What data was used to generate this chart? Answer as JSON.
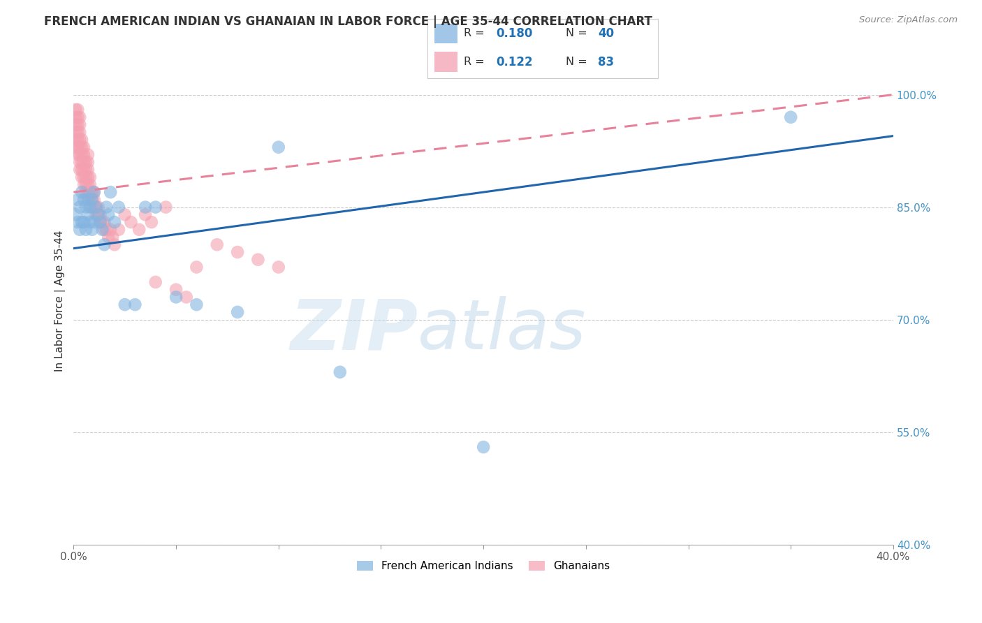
{
  "title": "FRENCH AMERICAN INDIAN VS GHANAIAN IN LABOR FORCE | AGE 35-44 CORRELATION CHART",
  "source": "Source: ZipAtlas.com",
  "ylabel": "In Labor Force | Age 35-44",
  "xlim": [
    0.0,
    0.4
  ],
  "ylim": [
    0.4,
    1.05
  ],
  "x_ticks": [
    0.0,
    0.05,
    0.1,
    0.15,
    0.2,
    0.25,
    0.3,
    0.35,
    0.4
  ],
  "x_tick_labels": [
    "0.0%",
    "",
    "",
    "",
    "",
    "",
    "",
    "",
    "40.0%"
  ],
  "y_ticks": [
    0.4,
    0.55,
    0.7,
    0.85,
    1.0
  ],
  "y_tick_labels": [
    "40.0%",
    "55.0%",
    "70.0%",
    "85.0%",
    "100.0%"
  ],
  "grid_color": "#cccccc",
  "background_color": "#ffffff",
  "watermark_zip": "ZIP",
  "watermark_atlas": "atlas",
  "legend_R_blue": "0.180",
  "legend_N_blue": "40",
  "legend_R_pink": "0.122",
  "legend_N_pink": "83",
  "blue_color": "#82b4e0",
  "pink_color": "#f4a0b0",
  "blue_line_color": "#2166ac",
  "pink_line_color": "#e8829a",
  "title_color": "#333333",
  "source_color": "#888888",
  "axis_label_color": "#333333",
  "tick_color_y": "#4393c3",
  "tick_color_x": "#555555",
  "blue_scatter_x": [
    0.001,
    0.002,
    0.002,
    0.003,
    0.003,
    0.004,
    0.004,
    0.005,
    0.005,
    0.006,
    0.006,
    0.007,
    0.007,
    0.008,
    0.008,
    0.009,
    0.009,
    0.01,
    0.01,
    0.011,
    0.012,
    0.013,
    0.014,
    0.015,
    0.016,
    0.017,
    0.018,
    0.02,
    0.022,
    0.025,
    0.03,
    0.035,
    0.04,
    0.05,
    0.06,
    0.08,
    0.1,
    0.13,
    0.2,
    0.35
  ],
  "blue_scatter_y": [
    0.84,
    0.86,
    0.83,
    0.85,
    0.82,
    0.87,
    0.83,
    0.86,
    0.83,
    0.85,
    0.82,
    0.86,
    0.84,
    0.85,
    0.83,
    0.86,
    0.82,
    0.87,
    0.83,
    0.85,
    0.84,
    0.83,
    0.82,
    0.8,
    0.85,
    0.84,
    0.87,
    0.83,
    0.85,
    0.72,
    0.72,
    0.85,
    0.85,
    0.73,
    0.72,
    0.71,
    0.93,
    0.63,
    0.53,
    0.97
  ],
  "pink_scatter_x": [
    0.001,
    0.001,
    0.001,
    0.001,
    0.001,
    0.001,
    0.002,
    0.002,
    0.002,
    0.002,
    0.002,
    0.002,
    0.002,
    0.003,
    0.003,
    0.003,
    0.003,
    0.003,
    0.003,
    0.003,
    0.003,
    0.004,
    0.004,
    0.004,
    0.004,
    0.004,
    0.004,
    0.005,
    0.005,
    0.005,
    0.005,
    0.005,
    0.005,
    0.006,
    0.006,
    0.006,
    0.006,
    0.006,
    0.007,
    0.007,
    0.007,
    0.007,
    0.007,
    0.007,
    0.008,
    0.008,
    0.008,
    0.008,
    0.009,
    0.009,
    0.009,
    0.01,
    0.01,
    0.01,
    0.011,
    0.011,
    0.012,
    0.012,
    0.013,
    0.013,
    0.014,
    0.015,
    0.015,
    0.016,
    0.017,
    0.018,
    0.019,
    0.02,
    0.022,
    0.025,
    0.028,
    0.032,
    0.035,
    0.038,
    0.04,
    0.045,
    0.05,
    0.055,
    0.06,
    0.07,
    0.08,
    0.09,
    0.1
  ],
  "pink_scatter_y": [
    0.93,
    0.94,
    0.95,
    0.96,
    0.97,
    0.98,
    0.92,
    0.93,
    0.94,
    0.95,
    0.96,
    0.97,
    0.98,
    0.9,
    0.91,
    0.92,
    0.93,
    0.94,
    0.95,
    0.96,
    0.97,
    0.89,
    0.9,
    0.91,
    0.92,
    0.93,
    0.94,
    0.88,
    0.89,
    0.9,
    0.91,
    0.92,
    0.93,
    0.87,
    0.88,
    0.89,
    0.9,
    0.91,
    0.87,
    0.88,
    0.89,
    0.9,
    0.91,
    0.92,
    0.86,
    0.87,
    0.88,
    0.89,
    0.85,
    0.86,
    0.87,
    0.85,
    0.86,
    0.87,
    0.84,
    0.85,
    0.84,
    0.85,
    0.83,
    0.84,
    0.83,
    0.82,
    0.83,
    0.82,
    0.81,
    0.82,
    0.81,
    0.8,
    0.82,
    0.84,
    0.83,
    0.82,
    0.84,
    0.83,
    0.75,
    0.85,
    0.74,
    0.73,
    0.77,
    0.8,
    0.79,
    0.78,
    0.77
  ],
  "blue_line_x0": 0.0,
  "blue_line_x1": 0.4,
  "blue_line_y0": 0.795,
  "blue_line_y1": 0.945,
  "pink_line_x0": 0.0,
  "pink_line_x1": 0.4,
  "pink_line_y0": 0.87,
  "pink_line_y1": 1.0
}
